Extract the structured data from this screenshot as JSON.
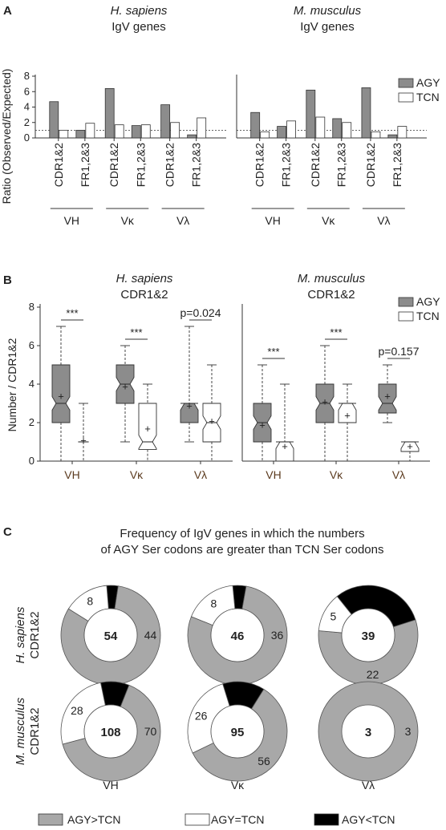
{
  "panelA": {
    "letter": "A",
    "groups": [
      {
        "species": "H. sapiens",
        "subtitle": "IgV genes"
      },
      {
        "species": "M. musculus",
        "subtitle": "IgV genes"
      }
    ],
    "legend": [
      "AGY",
      "TCN"
    ]
  },
  "panelB": {
    "letter": "B",
    "groups": [
      {
        "species": "H. sapiens",
        "subtitle": "CDR1&2"
      },
      {
        "species": "M. musculus",
        "subtitle": "CDR1&2"
      }
    ],
    "legend": [
      "AGY",
      "TCN"
    ]
  },
  "panelC": {
    "letter": "C",
    "title_line1": "Frequency of IgV genes in which the numbers",
    "title_line2": "of AGY Ser codons are greater than TCN Ser codons",
    "row_labels": [
      {
        "species": "H. sapiens",
        "region": "CDR1&2"
      },
      {
        "species": "M. musculus",
        "region": "CDR1&2"
      }
    ],
    "col_labels": [
      "VH",
      "Vκ",
      "Vλ"
    ],
    "legend": [
      "AGY>TCN",
      "AGY=TCN",
      "AGY<TCN"
    ]
  },
  "chart_data": [
    {
      "type": "bar",
      "ylabel": "Ratio (Observed/Expected)",
      "ylim": [
        0,
        8
      ],
      "yticks": [
        0,
        2,
        4,
        6,
        8
      ],
      "reference_line": 1,
      "categories": [
        "CDR1&2",
        "FR1,2&3",
        "CDR1&2",
        "FR1,2&3",
        "CDR1&2",
        "FR1,2&3"
      ],
      "category_groups": [
        "VH",
        "Vκ",
        "Vλ"
      ],
      "facets": [
        {
          "title": "H. sapiens",
          "series": [
            {
              "name": "AGY",
              "color": "#8c8c8c",
              "values": [
                4.7,
                1.0,
                6.4,
                1.6,
                4.3,
                0.4
              ]
            },
            {
              "name": "TCN",
              "color": "#ffffff",
              "values": [
                1.0,
                1.9,
                1.7,
                1.7,
                2.0,
                2.6
              ]
            }
          ]
        },
        {
          "title": "M. musculus",
          "series": [
            {
              "name": "AGY",
              "color": "#8c8c8c",
              "values": [
                3.3,
                1.5,
                6.2,
                2.5,
                6.5,
                0.4
              ]
            },
            {
              "name": "TCN",
              "color": "#ffffff",
              "values": [
                0.8,
                2.2,
                2.7,
                2.0,
                0.8,
                1.5
              ]
            }
          ]
        }
      ]
    },
    {
      "type": "box",
      "ylabel": "Number / CDR1&2",
      "ylim": [
        0,
        8
      ],
      "yticks": [
        0,
        2,
        4,
        6,
        8
      ],
      "categories": [
        "VH",
        "Vκ",
        "Vλ"
      ],
      "facets": [
        {
          "title": "H. sapiens",
          "groups": [
            {
              "category": "VH",
              "annotation": "***",
              "AGY": {
                "min": 0,
                "q1": 2,
                "median": 3,
                "q3": 5,
                "max": 7,
                "mean": 3.4
              },
              "TCN": {
                "min": 0,
                "q1": 1,
                "median": 1,
                "q3": 1,
                "max": 3,
                "mean": 1.1
              }
            },
            {
              "category": "Vκ",
              "annotation": "***",
              "AGY": {
                "min": 1,
                "q1": 3,
                "median": 4,
                "q3": 5,
                "max": 6,
                "mean": 3.9
              },
              "TCN": {
                "min": 0,
                "q1": 0.6,
                "median": 1,
                "q3": 3,
                "max": 4,
                "mean": 1.7
              }
            },
            {
              "category": "Vλ",
              "annotation": "p=0.024",
              "AGY": {
                "min": 1,
                "q1": 2,
                "median": 3,
                "q3": 3,
                "max": 7,
                "mean": 2.9
              },
              "TCN": {
                "min": 0,
                "q1": 1,
                "median": 2,
                "q3": 3,
                "max": 5,
                "mean": 2.1
              }
            }
          ]
        },
        {
          "title": "M. musculus",
          "groups": [
            {
              "category": "VH",
              "annotation": "***",
              "AGY": {
                "min": 0,
                "q1": 1,
                "median": 2,
                "q3": 3,
                "max": 5,
                "mean": 1.9
              },
              "TCN": {
                "min": 0,
                "q1": 0,
                "median": 1,
                "q3": 1,
                "max": 4,
                "mean": 0.8
              }
            },
            {
              "category": "Vκ",
              "annotation": "***",
              "AGY": {
                "min": 0,
                "q1": 2,
                "median": 3,
                "q3": 4,
                "max": 6,
                "mean": 3.1
              },
              "TCN": {
                "min": 0,
                "q1": 2,
                "median": 3,
                "q3": 3,
                "max": 4,
                "mean": 2.4
              }
            },
            {
              "category": "Vλ",
              "annotation": "p=0.157",
              "AGY": {
                "min": 2,
                "q1": 2.5,
                "median": 3,
                "q3": 4,
                "max": 5,
                "mean": 3.4
              },
              "TCN": {
                "min": 0,
                "q1": 0.5,
                "median": 1,
                "q3": 1,
                "max": 1,
                "mean": 0.8
              }
            }
          ]
        }
      ]
    },
    {
      "type": "pie",
      "style": "donut",
      "legend_position": "bottom",
      "slice_names": [
        "AGY>TCN",
        "AGY=TCN",
        "AGY<TCN"
      ],
      "slice_colors": [
        "#a8a8a8",
        "#ffffff",
        "#000000"
      ],
      "charts": [
        {
          "row": "H. sapiens",
          "col": "VH",
          "total": 54,
          "values": [
            44,
            8,
            2
          ],
          "labels": [
            "44",
            "8",
            ""
          ]
        },
        {
          "row": "H. sapiens",
          "col": "Vκ",
          "total": 46,
          "values": [
            36,
            8,
            2
          ],
          "labels": [
            "36",
            "8",
            ""
          ]
        },
        {
          "row": "H. sapiens",
          "col": "Vλ",
          "total": 39,
          "values": [
            22,
            5,
            12
          ],
          "labels": [
            "22",
            "5",
            ""
          ]
        },
        {
          "row": "M. musculus",
          "col": "VH",
          "total": 108,
          "values": [
            70,
            28,
            10
          ],
          "labels": [
            "70",
            "28",
            ""
          ]
        },
        {
          "row": "M. musculus",
          "col": "Vκ",
          "total": 95,
          "values": [
            56,
            26,
            13
          ],
          "labels": [
            "56",
            "26",
            ""
          ]
        },
        {
          "row": "M. musculus",
          "col": "Vλ",
          "total": 3,
          "values": [
            3,
            0,
            0
          ],
          "labels": [
            "3",
            "",
            ""
          ]
        }
      ]
    }
  ]
}
